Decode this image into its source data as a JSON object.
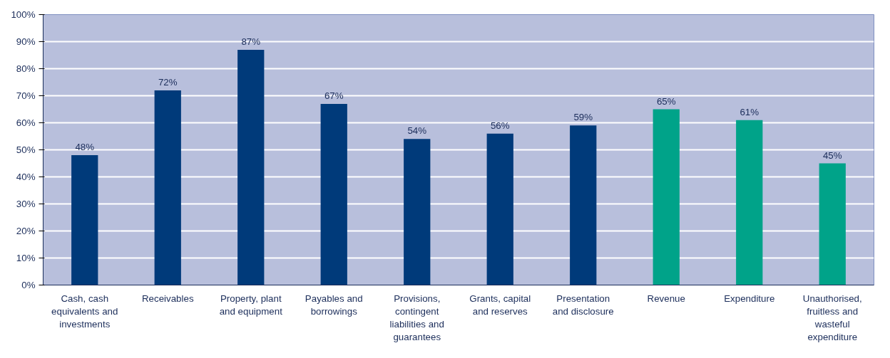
{
  "chart_data": {
    "type": "bar",
    "categories": [
      "Cash, cash equivalents and investments",
      "Receivables",
      "Property, plant and equipment",
      "Payables and borrowings",
      "Provisions, contingent liabilities and guarantees",
      "Grants, capital and reserves",
      "Presentation and disclosure",
      "Revenue",
      "Expenditure",
      "Unauthorised, fruitless and wasteful expenditure"
    ],
    "values": [
      48,
      72,
      87,
      67,
      54,
      56,
      59,
      65,
      61,
      45
    ],
    "colors": [
      "#003a7a",
      "#003a7a",
      "#003a7a",
      "#003a7a",
      "#003a7a",
      "#003a7a",
      "#003a7a",
      "#00a389",
      "#00a389",
      "#00a389"
    ],
    "value_labels": [
      "48%",
      "72%",
      "87%",
      "67%",
      "54%",
      "56%",
      "59%",
      "65%",
      "61%",
      "45%"
    ],
    "ylim": [
      0,
      100
    ],
    "yticks": [
      {
        "value": 0,
        "label": "0%"
      },
      {
        "value": 10,
        "label": "10%"
      },
      {
        "value": 20,
        "label": "20%"
      },
      {
        "value": 30,
        "label": "30%"
      },
      {
        "value": 40,
        "label": "40%"
      },
      {
        "value": 50,
        "label": "50%"
      },
      {
        "value": 60,
        "label": "60%"
      },
      {
        "value": 70,
        "label": "70%"
      },
      {
        "value": 80,
        "label": "80%"
      },
      {
        "value": 90,
        "label": "90%"
      },
      {
        "value": 100,
        "label": "100%"
      }
    ],
    "grid": "y"
  }
}
